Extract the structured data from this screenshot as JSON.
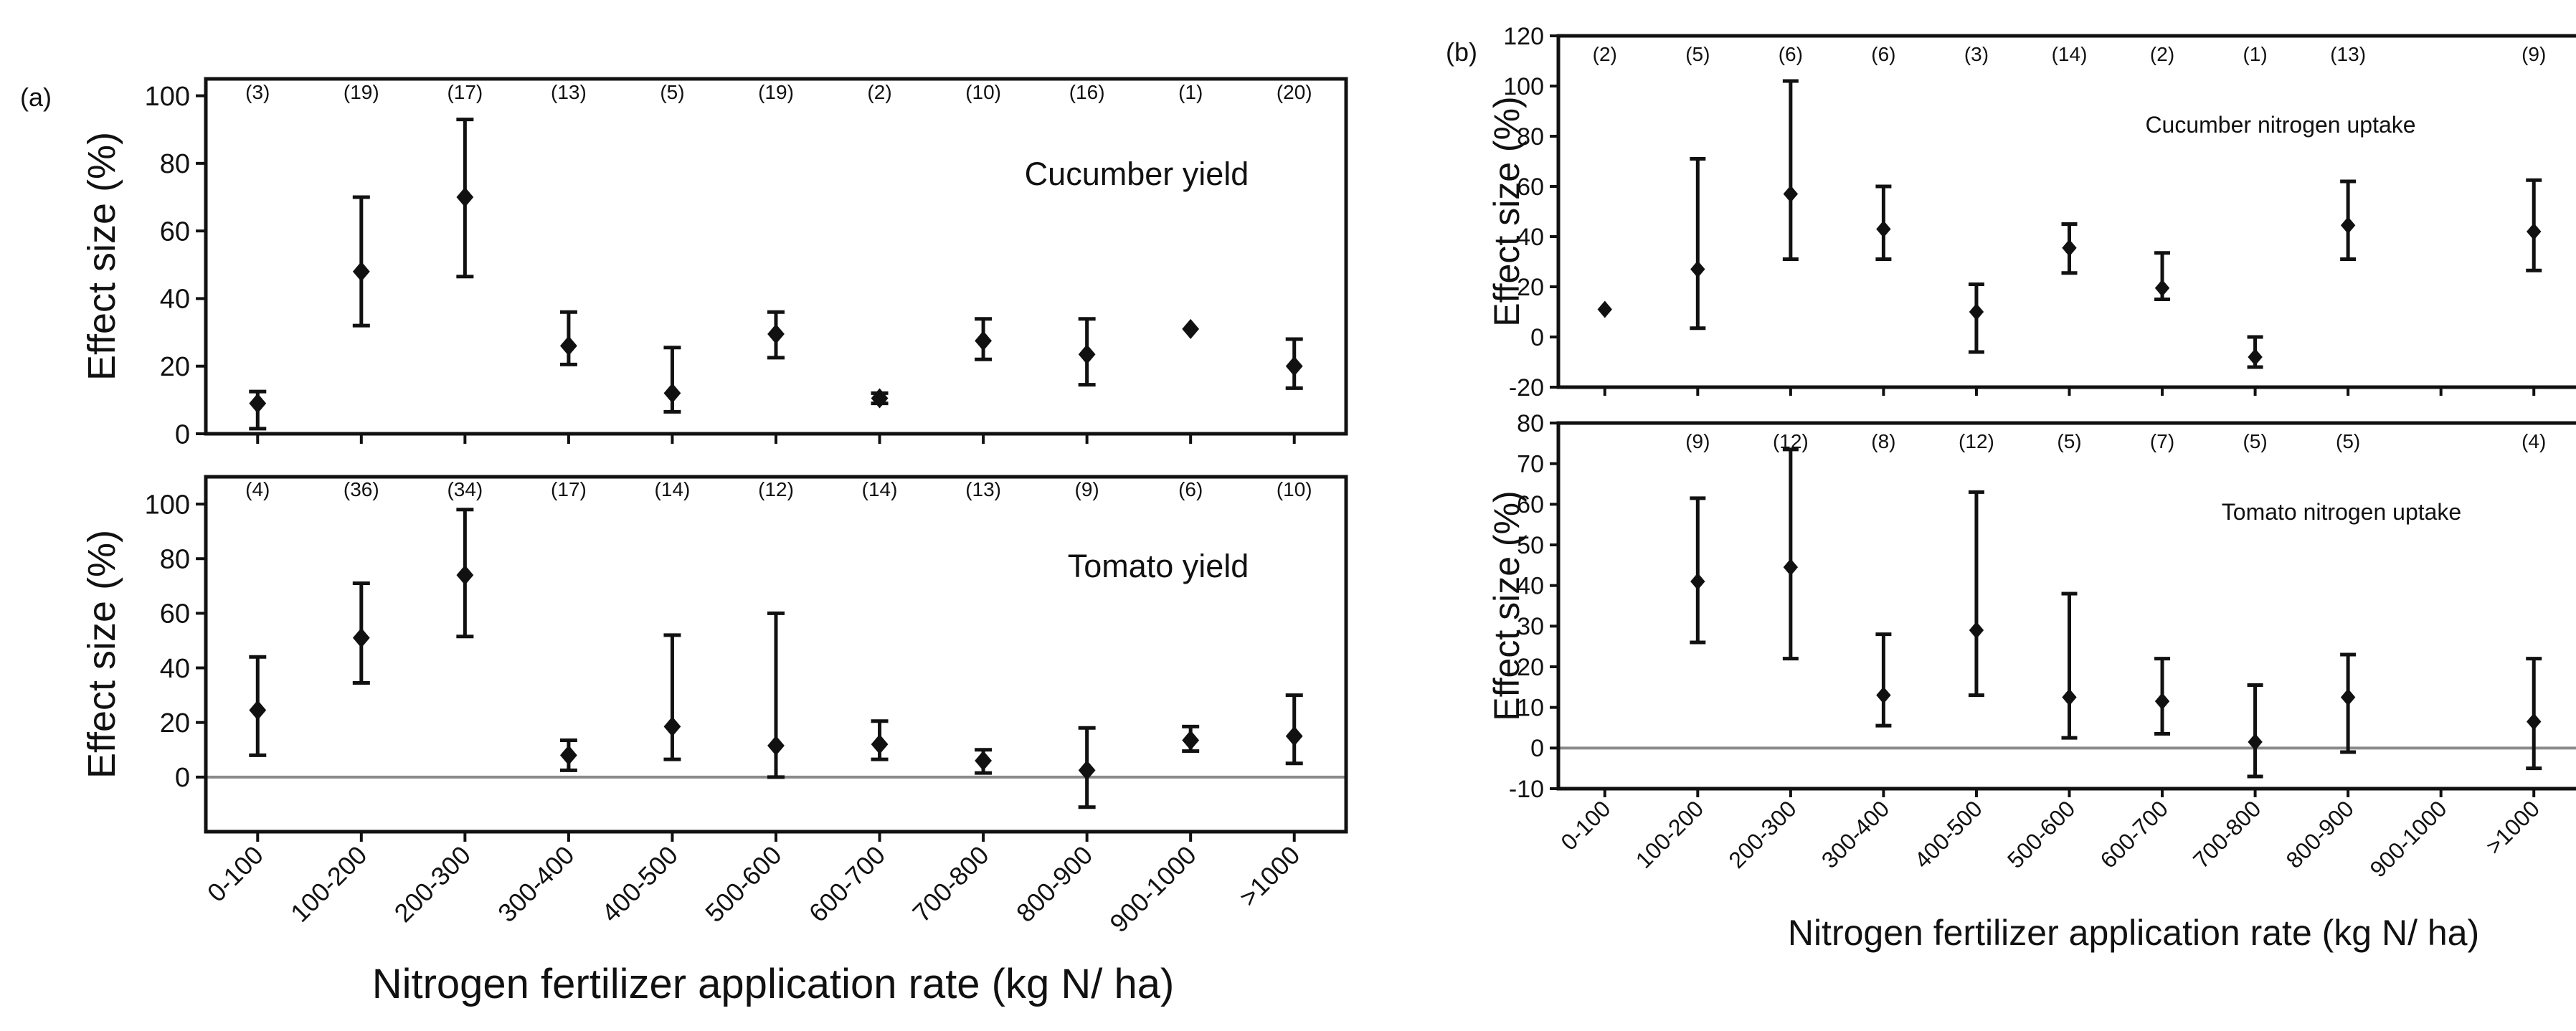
{
  "figure": {
    "panel_a_label": "(a)",
    "panel_b_label": "(b)",
    "panel_a_xlabel": "Nitrogen fertilizer application rate (kg N/ ha)",
    "panel_b_xlabel": "Nitrogen fertilizer application rate (kg N/ ha)"
  },
  "chart_data": [
    {
      "type": "scatter",
      "panel": "a-top",
      "title": "Cucumber yield",
      "ylabel": "Effect size (%)",
      "xlabel": "",
      "categories": [
        "0-100",
        "100-200",
        "200-300",
        "300-400",
        "400-500",
        "500-600",
        "600-700",
        "700-800",
        "800-900",
        "900-1000",
        ">1000"
      ],
      "counts": [
        "(3)",
        "(19)",
        "(17)",
        "(13)",
        "(5)",
        "(19)",
        "(2)",
        "(10)",
        "(16)",
        "(1)",
        "(20)"
      ],
      "values": [
        9,
        48,
        70,
        26,
        12,
        29.5,
        10.5,
        27.5,
        23.5,
        31,
        20
      ],
      "lower": [
        1.5,
        32,
        46.5,
        20.5,
        6.5,
        22.5,
        9,
        22,
        14.5,
        31,
        13.5
      ],
      "upper": [
        12.5,
        70,
        93,
        36,
        25.5,
        36,
        12,
        34,
        34,
        31,
        28
      ],
      "ylim": [
        0,
        105
      ],
      "yticks": [
        0,
        20,
        40,
        60,
        80,
        100
      ],
      "zero_line": false
    },
    {
      "type": "scatter",
      "panel": "a-bottom",
      "title": "Tomato yield",
      "ylabel": "Effect size (%)",
      "xlabel": "",
      "categories": [
        "0-100",
        "100-200",
        "200-300",
        "300-400",
        "400-500",
        "500-600",
        "600-700",
        "700-800",
        "800-900",
        "900-1000",
        ">1000"
      ],
      "counts": [
        "(4)",
        "(36)",
        "(34)",
        "(17)",
        "(14)",
        "(12)",
        "(14)",
        "(13)",
        "(9)",
        "(6)",
        "(10)"
      ],
      "values": [
        24.5,
        51,
        74,
        8,
        18.5,
        11.5,
        12,
        6,
        2.5,
        13.5,
        15
      ],
      "lower": [
        8,
        34.5,
        51.5,
        2.5,
        6.5,
        0,
        6.5,
        1.5,
        -11,
        9.5,
        5
      ],
      "upper": [
        44,
        71,
        98,
        13.5,
        52,
        60,
        20.5,
        10,
        18,
        18.5,
        30
      ],
      "ylim": [
        -20,
        110
      ],
      "yticks": [
        0,
        20,
        40,
        60,
        80,
        100
      ],
      "zero_line": true
    },
    {
      "type": "scatter",
      "panel": "b-top",
      "title": "Cucumber nitrogen uptake",
      "ylabel": "Effect size (%)",
      "xlabel": "",
      "categories": [
        "0-100",
        "100-200",
        "200-300",
        "300-400",
        "400-500",
        "500-600",
        "600-700",
        "700-800",
        "800-900",
        "900-1000",
        ">1000"
      ],
      "counts": [
        "(2)",
        "(5)",
        "(6)",
        "(6)",
        "(3)",
        "(14)",
        "(2)",
        "(1)",
        "(13)",
        "",
        "(9)"
      ],
      "values": [
        11,
        27,
        57,
        43,
        10,
        35.5,
        19.5,
        -8,
        44.5,
        null,
        42
      ],
      "lower": [
        11,
        3.5,
        31,
        31,
        -6,
        25.5,
        15,
        -12,
        31,
        null,
        26.5
      ],
      "upper": [
        11,
        71,
        102,
        60,
        21,
        45,
        33.5,
        0,
        62,
        null,
        62.5
      ],
      "ylim": [
        -20,
        120
      ],
      "yticks": [
        -20,
        0,
        20,
        40,
        60,
        80,
        100,
        120
      ],
      "zero_line": false
    },
    {
      "type": "scatter",
      "panel": "b-bottom",
      "title": "Tomato nitrogen uptake",
      "ylabel": "Effect size (%)",
      "xlabel": "",
      "categories": [
        "0-100",
        "100-200",
        "200-300",
        "300-400",
        "400-500",
        "500-600",
        "600-700",
        "700-800",
        "800-900",
        "900-1000",
        ">1000"
      ],
      "counts": [
        "",
        "(9)",
        "(12)",
        "(8)",
        "(12)",
        "(5)",
        "(7)",
        "(5)",
        "(5)",
        "",
        "(4)"
      ],
      "values": [
        null,
        41,
        44.5,
        13,
        29,
        12.5,
        11.5,
        1.5,
        12.5,
        null,
        6.5
      ],
      "lower": [
        null,
        26,
        22,
        5.5,
        13,
        2.5,
        3.5,
        -7,
        -1,
        null,
        -5
      ],
      "upper": [
        null,
        61.5,
        73.5,
        28,
        63,
        38,
        22,
        15.5,
        23,
        null,
        22
      ],
      "ylim": [
        -10,
        80
      ],
      "yticks": [
        -10,
        0,
        10,
        20,
        30,
        40,
        50,
        60,
        70,
        80
      ],
      "zero_line": true
    }
  ]
}
